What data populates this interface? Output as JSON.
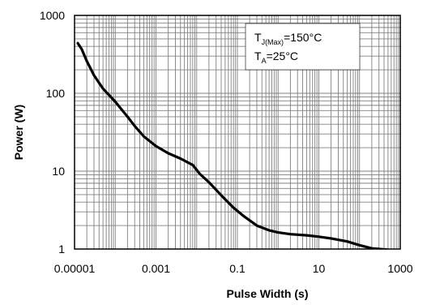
{
  "chart_data": {
    "type": "line",
    "title": "",
    "xlabel": "Pulse Width (s)",
    "ylabel": "Power (W)",
    "x_scale": "log",
    "y_scale": "log",
    "xlim": [
      1e-05,
      1000
    ],
    "ylim": [
      1,
      1000
    ],
    "x_ticks": [
      "0.00001",
      "0.001",
      "0.1",
      "10",
      "1000"
    ],
    "y_ticks": [
      "1",
      "10",
      "100",
      "1000"
    ],
    "grid": true,
    "colors": {
      "line": "#000000",
      "grid": "#808080",
      "frame": "#000000"
    },
    "annotation": {
      "line1_main": "T",
      "line1_sub": "J(Max)",
      "line1_rest": "=150°C",
      "line2_main": "T",
      "line2_sub": "A",
      "line2_rest": "=25°C"
    },
    "series": [
      {
        "x": [
          1.2e-05,
          1.5e-05,
          2e-05,
          3e-05,
          5e-05,
          7e-05,
          0.0001,
          0.00015,
          0.0002,
          0.0003,
          0.0005,
          0.001,
          0.002,
          0.004,
          0.008,
          0.012,
          0.02,
          0.04,
          0.08,
          0.15,
          0.3,
          0.6,
          1,
          2,
          5,
          10,
          20,
          50,
          100,
          200,
          500
        ],
        "values": [
          440,
          370,
          260,
          170,
          115,
          95,
          78,
          60,
          50,
          38,
          28,
          21,
          17,
          14.5,
          12,
          9.2,
          7.2,
          4.9,
          3.4,
          2.6,
          2.0,
          1.74,
          1.63,
          1.55,
          1.5,
          1.44,
          1.37,
          1.25,
          1.12,
          1.02,
          0.98
        ]
      }
    ]
  }
}
